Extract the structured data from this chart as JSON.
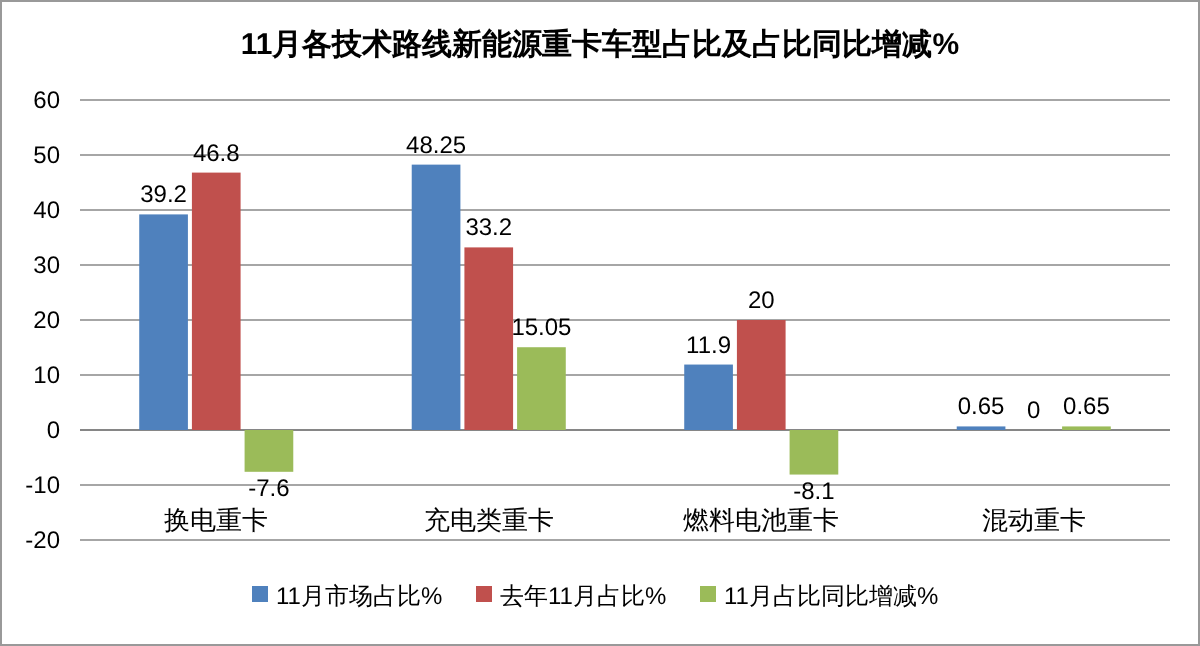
{
  "chart_data": {
    "type": "bar",
    "title": "11月各技术路线新能源重卡车型占比及占比同比增减%",
    "categories": [
      "换电重卡",
      "充电类重卡",
      "燃料电池重卡",
      "混动重卡"
    ],
    "series": [
      {
        "name": "11月市场占比%",
        "color": "#4f81bd",
        "values": [
          39.2,
          48.25,
          11.9,
          0.65
        ]
      },
      {
        "name": "去年11月占比%",
        "color": "#c0504d",
        "values": [
          46.8,
          33.2,
          20,
          0
        ]
      },
      {
        "name": "11月占比同比增减%",
        "color": "#9bbb59",
        "values": [
          -7.6,
          15.05,
          -8.1,
          0.65
        ]
      }
    ],
    "ylim": [
      -20,
      60
    ],
    "yticks": [
      -20,
      -10,
      0,
      10,
      20,
      30,
      40,
      50,
      60
    ],
    "grid": "y",
    "legend": "bottom",
    "data_labels": true
  }
}
